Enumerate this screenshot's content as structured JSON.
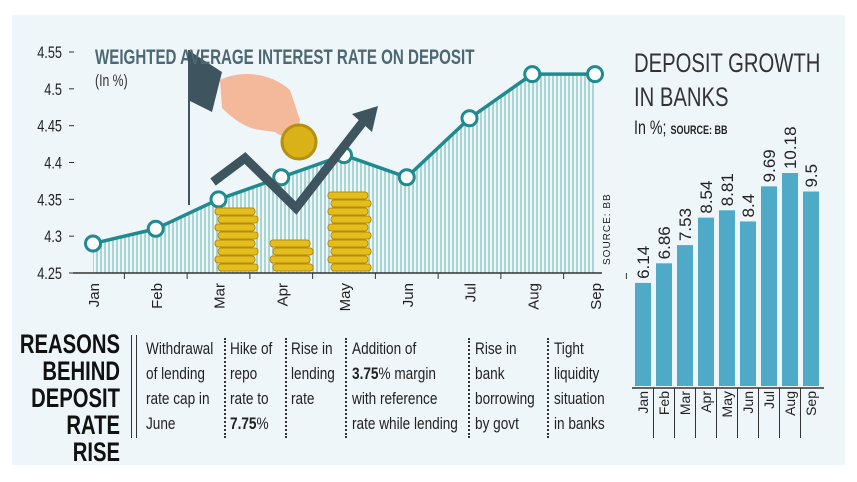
{
  "chart_data": [
    {
      "type": "line",
      "title": "WEIGHTED AVERAGE INTEREST RATE ON DEPOSIT",
      "unit": "(In %)",
      "source": "SOURCE: BB",
      "categories": [
        "Jan",
        "Feb",
        "Mar",
        "Apr",
        "May",
        "Jun",
        "Jul",
        "Aug",
        "Sep"
      ],
      "values": [
        4.29,
        4.31,
        4.35,
        4.38,
        4.41,
        4.38,
        4.46,
        4.52,
        4.52
      ],
      "yticks": [
        "4.55",
        "4.5",
        "4.45",
        "4.4",
        "4.35",
        "4.3",
        "4.25"
      ],
      "ylim": [
        4.25,
        4.55
      ],
      "line_color": "#1f8a8f",
      "fill": "striped"
    },
    {
      "type": "bar",
      "title_lines": [
        "DEPOSIT GROWTH",
        "IN BANKS"
      ],
      "unit": "In %;",
      "source": "SOURCE: BB",
      "categories": [
        "Jan",
        "Feb",
        "Mar",
        "Apr",
        "May",
        "Jun",
        "Jul",
        "Aug",
        "Sep"
      ],
      "values": [
        6.14,
        6.86,
        7.53,
        8.54,
        8.81,
        8.4,
        9.69,
        10.18,
        9.5
      ],
      "labels": [
        "6.14",
        "6.86",
        "7.53",
        "8.54",
        "8.81",
        "8.4",
        "9.69",
        "10.18",
        "9.5"
      ],
      "bar_color": "#4eaac6"
    }
  ],
  "reasons": {
    "heading": [
      "REASONS",
      "BEHIND",
      "DEPOSIT",
      "RATE RISE"
    ],
    "items": [
      {
        "lines": [
          "Withdrawal",
          "of lending",
          "rate cap in",
          "June"
        ]
      },
      {
        "lines": [
          "Hike of",
          "repo",
          "rate to"
        ],
        "bold": "7.75",
        "rest": "%"
      },
      {
        "lines": [
          "Rise in",
          "lending",
          "rate"
        ]
      },
      {
        "first": "Addition of",
        "bold": "3.75",
        "rest": "% margin",
        "lines": [
          "with reference",
          "rate while lending"
        ]
      },
      {
        "lines": [
          "Rise in",
          "bank",
          "borrowing",
          "by govt"
        ]
      },
      {
        "lines": [
          "Tight",
          "liquidity",
          "situation",
          "in banks"
        ]
      }
    ]
  }
}
